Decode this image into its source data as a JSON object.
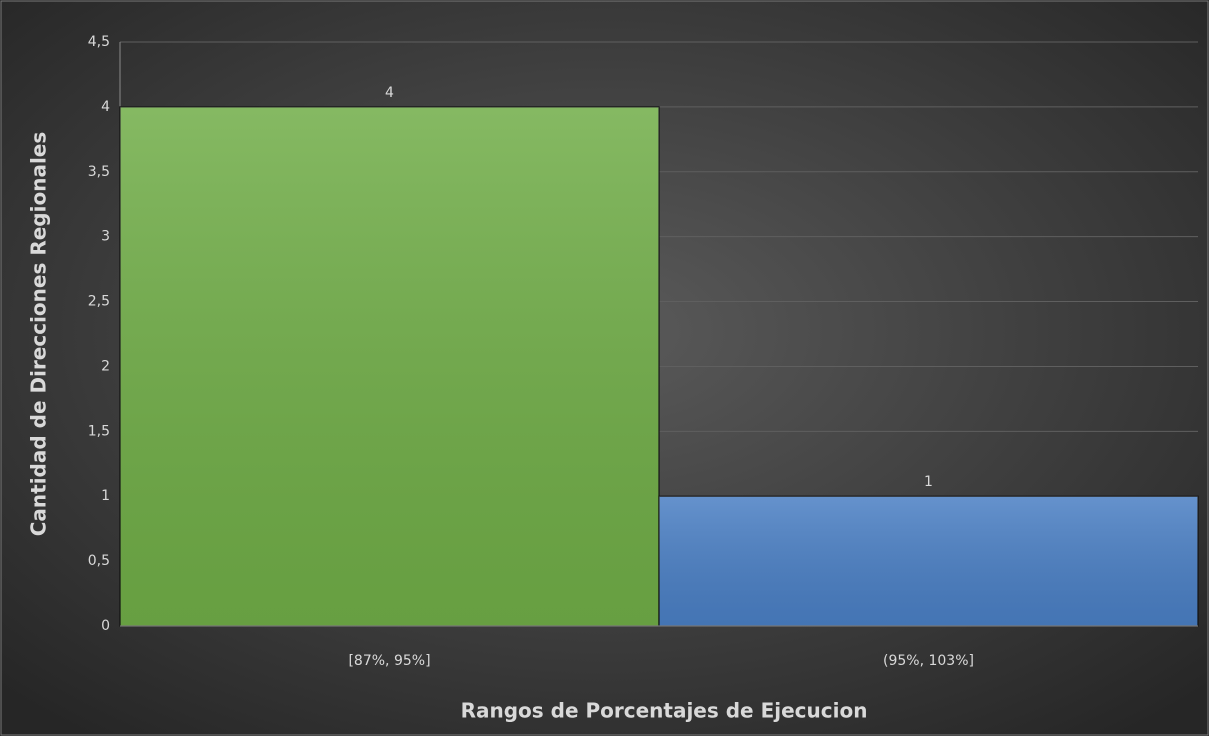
{
  "chart_data": {
    "type": "bar",
    "categories": [
      "[87%, 95%]",
      "(95%, 103%]"
    ],
    "values": [
      4,
      1
    ],
    "colors": [
      "#70ad47",
      "#4a7fc4"
    ],
    "x_label": "Rangos de Porcentajes de Ejecucion",
    "y_label": "Cantidad de Direcciones Regionales",
    "ylim": [
      0,
      4.5
    ],
    "yticks": [
      0,
      {
        "value": 0.5,
        "label": "0,5"
      },
      1,
      {
        "value": 1.5,
        "label": "1,5"
      },
      2,
      {
        "value": 2.5,
        "label": "2,5"
      },
      3,
      {
        "value": 3.5,
        "label": "3,5"
      },
      4,
      {
        "value": 4.5,
        "label": "4,5"
      }
    ],
    "grid": true
  }
}
